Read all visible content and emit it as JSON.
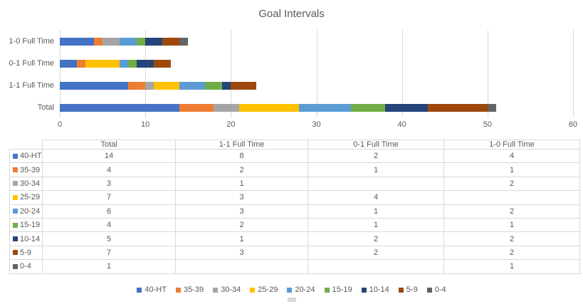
{
  "title": "Goal Intervals",
  "chart_data": {
    "type": "bar",
    "orientation": "horizontal",
    "stacked": true,
    "title": "Goal Intervals",
    "categories": [
      "1-0 Full Time",
      "0-1 Full Time",
      "1-1 Full Time",
      "Total"
    ],
    "xlim": [
      0,
      60
    ],
    "xticks": [
      0,
      10,
      20,
      30,
      40,
      50,
      60
    ],
    "grid": true,
    "legend_position": "bottom",
    "series": [
      {
        "name": "40-HT",
        "color": "#4472C4",
        "values": [
          4,
          2,
          8,
          14
        ]
      },
      {
        "name": "35-39",
        "color": "#ED7D31",
        "values": [
          1,
          1,
          2,
          4
        ]
      },
      {
        "name": "30-34",
        "color": "#A5A5A5",
        "values": [
          2,
          0,
          1,
          3
        ]
      },
      {
        "name": "25-29",
        "color": "#FFC000",
        "values": [
          0,
          4,
          3,
          7
        ]
      },
      {
        "name": "20-24",
        "color": "#5B9BD5",
        "values": [
          2,
          1,
          3,
          6
        ]
      },
      {
        "name": "15-19",
        "color": "#70AD47",
        "values": [
          1,
          1,
          2,
          4
        ]
      },
      {
        "name": "10-14",
        "color": "#264478",
        "values": [
          2,
          2,
          1,
          5
        ]
      },
      {
        "name": "5-9",
        "color": "#9E480E",
        "values": [
          2,
          2,
          3,
          7
        ]
      },
      {
        "name": "0-4",
        "color": "#636363",
        "values": [
          1,
          0,
          0,
          1
        ]
      }
    ]
  },
  "table": {
    "columns": [
      "",
      "Total",
      "1-1 Full Time",
      "0-1 Full Time",
      "1-0 Full Time"
    ],
    "rows": [
      {
        "label": "40-HT",
        "swatch": "#4472C4",
        "values": [
          "14",
          "8",
          "2",
          "4"
        ]
      },
      {
        "label": "35-39",
        "swatch": "#ED7D31",
        "values": [
          "4",
          "2",
          "1",
          "1"
        ]
      },
      {
        "label": "30-34",
        "swatch": "#A5A5A5",
        "values": [
          "3",
          "1",
          "",
          "2"
        ]
      },
      {
        "label": "25-29",
        "swatch": "#FFC000",
        "values": [
          "7",
          "3",
          "4",
          ""
        ]
      },
      {
        "label": "20-24",
        "swatch": "#5B9BD5",
        "values": [
          "6",
          "3",
          "1",
          "2"
        ]
      },
      {
        "label": "15-19",
        "swatch": "#70AD47",
        "values": [
          "4",
          "2",
          "1",
          "1"
        ]
      },
      {
        "label": "10-14",
        "swatch": "#264478",
        "values": [
          "5",
          "1",
          "2",
          "2"
        ]
      },
      {
        "label": "5-9",
        "swatch": "#9E480E",
        "values": [
          "7",
          "3",
          "2",
          "2"
        ]
      },
      {
        "label": "0-4",
        "swatch": "#636363",
        "values": [
          "1",
          "",
          "",
          "1"
        ]
      }
    ]
  },
  "legend": [
    {
      "label": "40-HT",
      "color": "#4472C4"
    },
    {
      "label": "35-39",
      "color": "#ED7D31"
    },
    {
      "label": "30-34",
      "color": "#A5A5A5"
    },
    {
      "label": "25-29",
      "color": "#FFC000"
    },
    {
      "label": "20-24",
      "color": "#5B9BD5"
    },
    {
      "label": "15-19",
      "color": "#70AD47"
    },
    {
      "label": "10-14",
      "color": "#264478"
    },
    {
      "label": "5-9",
      "color": "#9E480E"
    },
    {
      "label": "0-4",
      "color": "#636363"
    }
  ],
  "colors": {
    "text": "#595959",
    "grid": "#D9D9D9",
    "table_border": "#D9D9D9"
  }
}
